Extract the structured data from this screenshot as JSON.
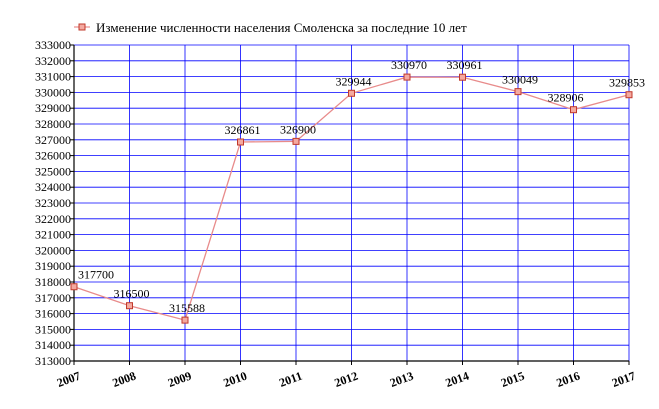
{
  "chart_data": {
    "type": "line",
    "title": "",
    "xlabel": "",
    "ylabel": "",
    "x": [
      "2007",
      "2008",
      "2009",
      "2010",
      "2011",
      "2012",
      "2013",
      "2014",
      "2015",
      "2016",
      "2017"
    ],
    "series": [
      {
        "name": "Изменение численности населения Смоленска за последние 10 лет",
        "values": [
          317700,
          316500,
          315588,
          326861,
          326900,
          329944,
          330970,
          330961,
          330049,
          328906,
          329853
        ],
        "labels": [
          "317700",
          "316500",
          "315588",
          "326861",
          "326900",
          "329944",
          "330970",
          "330961",
          "330049",
          "328906",
          "329853"
        ],
        "line_color": "#e88b8b",
        "marker_color": "#c0392b",
        "marker_fill": "#f4a9a0"
      }
    ],
    "ylim": [
      313000,
      333000
    ],
    "yticks": [
      "313000",
      "314000",
      "315000",
      "316000",
      "317000",
      "318000",
      "319000",
      "320000",
      "321000",
      "322000",
      "323000",
      "324000",
      "325000",
      "326000",
      "327000",
      "328000",
      "329000",
      "330000",
      "331000",
      "332000",
      "333000"
    ],
    "grid": true,
    "grid_color": "#0000ff",
    "legend_position": "top"
  }
}
